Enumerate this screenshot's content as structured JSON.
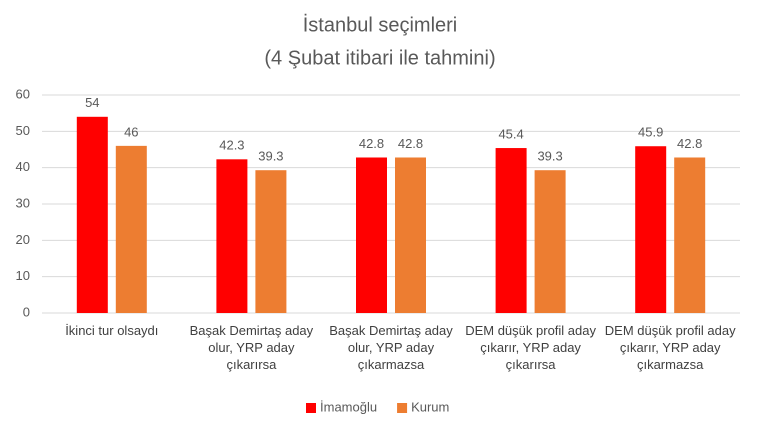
{
  "chart_data": {
    "type": "bar",
    "title": "İstanbul seçimleri",
    "subtitle": "(4 Şubat itibari ile tahmini)",
    "categories": [
      "İkinci tur olsaydı",
      "Başak Demirtaş aday olur, YRP aday çıkarırsa",
      "Başak Demirtaş aday olur, YRP aday çıkarmazsa",
      "DEM düşük profil aday çıkarır, YRP aday çıkarırsa",
      "DEM düşük profil aday çıkarır, YRP aday çıkarmazsa"
    ],
    "series": [
      {
        "name": "İmamoğlu",
        "color": "#ff0000",
        "values": [
          54,
          42.3,
          42.8,
          45.4,
          45.9
        ]
      },
      {
        "name": "Kurum",
        "color": "#ed7d31",
        "values": [
          46,
          39.3,
          42.8,
          39.3,
          42.8
        ]
      }
    ],
    "ylim": [
      0,
      60
    ],
    "yticks": [
      0,
      10,
      20,
      30,
      40,
      50,
      60
    ],
    "grid": true,
    "legend": "bottom"
  }
}
